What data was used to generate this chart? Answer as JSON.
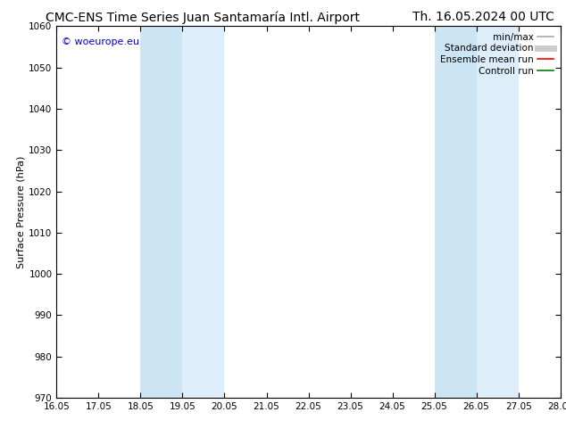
{
  "title_left": "CMC-ENS Time Series Juan Santamaría Intl. Airport",
  "title_right": "Th. 16.05.2024 00 UTC",
  "ylabel": "Surface Pressure (hPa)",
  "xlabel_ticks": [
    "16.05",
    "17.05",
    "18.05",
    "19.05",
    "20.05",
    "21.05",
    "22.05",
    "23.05",
    "24.05",
    "25.05",
    "26.05",
    "27.05",
    "28.05"
  ],
  "xlim": [
    0,
    12
  ],
  "ylim": [
    970,
    1060
  ],
  "yticks": [
    970,
    980,
    990,
    1000,
    1010,
    1020,
    1030,
    1040,
    1050,
    1060
  ],
  "watermark": "© woeurope.eu",
  "watermark_color": "#0000cc",
  "bg_color": "#ffffff",
  "plot_bg_color": "#ffffff",
  "shaded_regions": [
    {
      "xmin": 2.0,
      "xmax": 3.0,
      "color": "#cce5f5"
    },
    {
      "xmin": 3.0,
      "xmax": 4.0,
      "color": "#ddeefa"
    },
    {
      "xmin": 9.0,
      "xmax": 10.0,
      "color": "#cce5f5"
    },
    {
      "xmin": 10.0,
      "xmax": 11.0,
      "color": "#ddeefa"
    }
  ],
  "legend_entries": [
    {
      "label": "min/max",
      "color": "#aaaaaa",
      "lw": 1.2,
      "style": "solid"
    },
    {
      "label": "Standard deviation",
      "color": "#cccccc",
      "lw": 5,
      "style": "solid"
    },
    {
      "label": "Ensemble mean run",
      "color": "#ff0000",
      "lw": 1.2,
      "style": "solid"
    },
    {
      "label": "Controll run",
      "color": "#008000",
      "lw": 1.2,
      "style": "solid"
    }
  ],
  "title_fontsize": 10,
  "ylabel_fontsize": 8,
  "tick_fontsize": 7.5,
  "legend_fontsize": 7.5,
  "watermark_fontsize": 8
}
